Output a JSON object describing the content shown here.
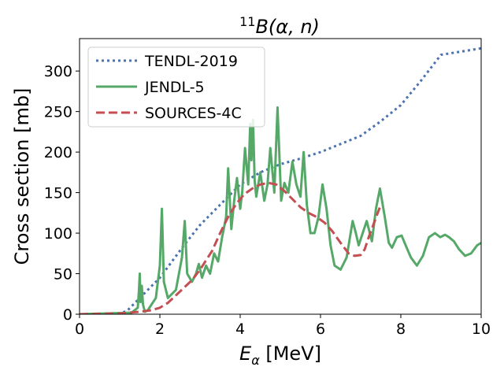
{
  "chart_data": {
    "type": "line",
    "title_sup": "11",
    "title_main": "B(α, n)",
    "xlabel_symbol": "E",
    "xlabel_sub": "α",
    "xlabel_unit": " [MeV]",
    "ylabel": "Cross section [mb]",
    "xlim": [
      0,
      10
    ],
    "ylim": [
      0,
      340
    ],
    "xticks": [
      0,
      2,
      4,
      6,
      8,
      10
    ],
    "xtick_labels": [
      "0",
      "2",
      "4",
      "6",
      "8",
      "10"
    ],
    "yticks": [
      0,
      50,
      100,
      150,
      200,
      250,
      300
    ],
    "ytick_labels": [
      "0",
      "50",
      "100",
      "150",
      "200",
      "250",
      "300"
    ],
    "legend_position": "top-left",
    "series": [
      {
        "name": "TENDL-2019",
        "color": "#4c72b0",
        "style": "dotted",
        "x": [
          0,
          1.0,
          1.2,
          1.5,
          1.8,
          2.0,
          2.3,
          2.6,
          3.0,
          3.5,
          4.0,
          4.5,
          5.0,
          5.5,
          6.0,
          6.5,
          7.0,
          7.5,
          8.0,
          8.5,
          9.0,
          9.5,
          10.0
        ],
        "values": [
          0,
          0,
          5,
          20,
          35,
          45,
          65,
          85,
          110,
          135,
          160,
          175,
          185,
          192,
          200,
          210,
          220,
          238,
          258,
          288,
          320,
          324,
          328
        ]
      },
      {
        "name": "JENDL-5",
        "color": "#55a868",
        "style": "solid",
        "x": [
          0,
          1.3,
          1.45,
          1.48,
          1.5,
          1.52,
          1.55,
          1.58,
          1.6,
          1.63,
          1.7,
          1.9,
          2.0,
          2.05,
          2.1,
          2.2,
          2.4,
          2.55,
          2.62,
          2.68,
          2.8,
          2.9,
          2.97,
          3.05,
          3.15,
          3.25,
          3.35,
          3.45,
          3.55,
          3.65,
          3.7,
          3.78,
          3.85,
          3.92,
          4.0,
          4.05,
          4.12,
          4.2,
          4.25,
          4.28,
          4.32,
          4.36,
          4.4,
          4.5,
          4.6,
          4.68,
          4.75,
          4.85,
          4.93,
          5.02,
          5.1,
          5.2,
          5.3,
          5.4,
          5.5,
          5.58,
          5.66,
          5.75,
          5.85,
          5.95,
          6.05,
          6.15,
          6.25,
          6.35,
          6.5,
          6.65,
          6.8,
          6.88,
          6.95,
          7.05,
          7.15,
          7.28,
          7.38,
          7.48,
          7.6,
          7.7,
          7.78,
          7.9,
          8.02,
          8.12,
          8.25,
          8.4,
          8.55,
          8.7,
          8.85,
          8.98,
          9.1,
          9.2,
          9.32,
          9.45,
          9.6,
          9.75,
          9.9,
          10.0
        ],
        "values": [
          0,
          2,
          8,
          30,
          50,
          15,
          35,
          12,
          8,
          3,
          5,
          20,
          60,
          130,
          40,
          20,
          30,
          70,
          115,
          50,
          40,
          50,
          62,
          45,
          60,
          50,
          75,
          65,
          95,
          120,
          180,
          105,
          140,
          168,
          130,
          150,
          205,
          160,
          235,
          190,
          240,
          165,
          145,
          175,
          140,
          160,
          205,
          150,
          255,
          140,
          162,
          150,
          188,
          160,
          145,
          200,
          135,
          100,
          100,
          120,
          160,
          130,
          85,
          60,
          55,
          70,
          115,
          100,
          85,
          100,
          115,
          90,
          130,
          155,
          120,
          88,
          82,
          95,
          97,
          85,
          70,
          60,
          72,
          95,
          100,
          95,
          98,
          95,
          90,
          80,
          72,
          75,
          85,
          88
        ]
      },
      {
        "name": "SOURCES-4C",
        "color": "#c44e52",
        "style": "dashed",
        "x": [
          0,
          1.0,
          1.5,
          1.8,
          2.0,
          2.2,
          2.5,
          2.8,
          3.0,
          3.3,
          3.5,
          3.7,
          3.9,
          4.1,
          4.3,
          4.5,
          4.7,
          4.9,
          5.1,
          5.3,
          5.5,
          5.7,
          5.9,
          6.1,
          6.3,
          6.5,
          6.7,
          6.85,
          7.0,
          7.1,
          7.2,
          7.35,
          7.5
        ],
        "values": [
          0,
          1,
          3,
          5,
          8,
          14,
          28,
          42,
          55,
          78,
          100,
          120,
          136,
          148,
          155,
          160,
          162,
          160,
          152,
          142,
          132,
          125,
          120,
          113,
          102,
          88,
          75,
          72,
          73,
          80,
          95,
          115,
          135
        ]
      }
    ]
  }
}
